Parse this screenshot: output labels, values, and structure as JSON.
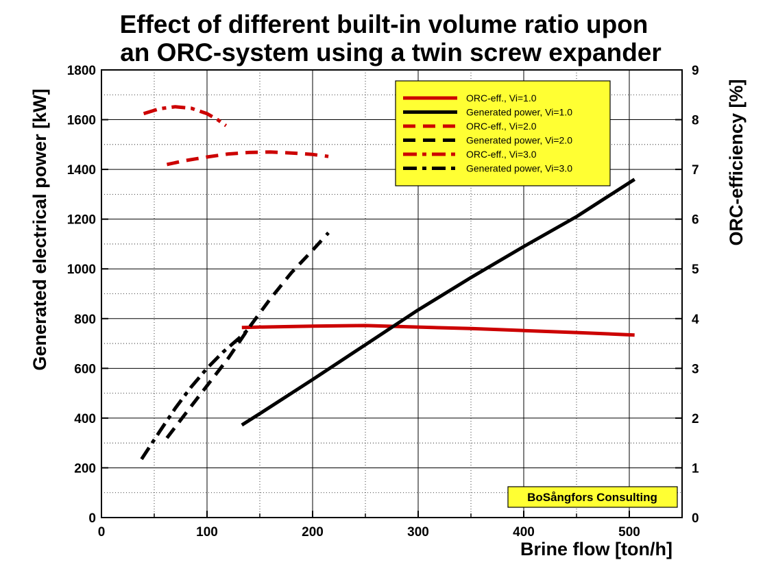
{
  "chart_data": {
    "type": "line",
    "title_lines": [
      "Effect of different built-in volume ratio upon",
      "an ORC-system using a twin screw expander"
    ],
    "xlabel": "Brine flow [ton/h]",
    "ylabel_left": "Generated electrical power [kW]",
    "ylabel_right": "ORC-efficiency [%]",
    "xlim": [
      0,
      550
    ],
    "ylim_left": [
      0,
      1800
    ],
    "ylim_right": [
      0,
      9
    ],
    "x_ticks": [
      0,
      100,
      200,
      300,
      400,
      500
    ],
    "x_tick_labels": [
      "0",
      "100",
      "200",
      "300",
      "400",
      "500"
    ],
    "y_left_ticks": [
      0,
      200,
      400,
      600,
      800,
      1000,
      1200,
      1400,
      1600,
      1800
    ],
    "y_left_tick_labels": [
      "0",
      "200",
      "400",
      "600",
      "800",
      "1000",
      "1200",
      "1400",
      "1600",
      "1800"
    ],
    "y_right_ticks": [
      0,
      1,
      2,
      3,
      4,
      5,
      6,
      7,
      8,
      9
    ],
    "y_right_tick_labels": [
      "0",
      "1",
      "2",
      "3",
      "4",
      "5",
      "6",
      "7",
      "8",
      "9"
    ],
    "grid": true,
    "legend_position": "top-right",
    "series": [
      {
        "name": "ORC-eff., Vi=1.0",
        "axis": "right",
        "color": "#cc0000",
        "dash": "solid",
        "x": [
          133,
          150,
          200,
          250,
          300,
          350,
          400,
          450,
          505
        ],
        "y": [
          3.82,
          3.83,
          3.85,
          3.86,
          3.83,
          3.8,
          3.76,
          3.72,
          3.67
        ]
      },
      {
        "name": "Generated power, Vi=1.0",
        "axis": "left",
        "color": "#000000",
        "dash": "solid",
        "x": [
          133,
          150,
          200,
          250,
          300,
          350,
          400,
          450,
          505
        ],
        "y": [
          372,
          418,
          555,
          695,
          835,
          965,
          1090,
          1210,
          1360
        ]
      },
      {
        "name": "ORC-eff., Vi=2.0",
        "axis": "right",
        "color": "#cc0000",
        "dash": "dashed",
        "x": [
          62,
          80,
          100,
          120,
          140,
          160,
          180,
          200,
          215
        ],
        "y": [
          7.1,
          7.18,
          7.25,
          7.31,
          7.34,
          7.35,
          7.33,
          7.3,
          7.26
        ]
      },
      {
        "name": "Generated power, Vi=2.0",
        "axis": "left",
        "color": "#000000",
        "dash": "dashed",
        "x": [
          62,
          80,
          100,
          120,
          140,
          160,
          180,
          200,
          215
        ],
        "y": [
          320,
          420,
          530,
          640,
          765,
          880,
          985,
          1075,
          1145
        ]
      },
      {
        "name": "ORC-eff., Vi=3.0",
        "axis": "right",
        "color": "#cc0000",
        "dash": "dashdot",
        "x": [
          40,
          55,
          70,
          85,
          100,
          110,
          118
        ],
        "y": [
          8.12,
          8.22,
          8.26,
          8.23,
          8.12,
          8.0,
          7.88
        ]
      },
      {
        "name": "Generated power, Vi=3.0",
        "axis": "left",
        "color": "#000000",
        "dash": "dashdot",
        "x": [
          38,
          55,
          70,
          85,
          100,
          115,
          130,
          140
        ],
        "y": [
          235,
          345,
          440,
          525,
          600,
          665,
          720,
          760
        ]
      }
    ],
    "watermark": "BoSångfors Consulting",
    "colors": {
      "legend_background": "#ffff33",
      "watermark_background": "#ffff33",
      "red": "#cc0000",
      "black": "#000000"
    }
  }
}
